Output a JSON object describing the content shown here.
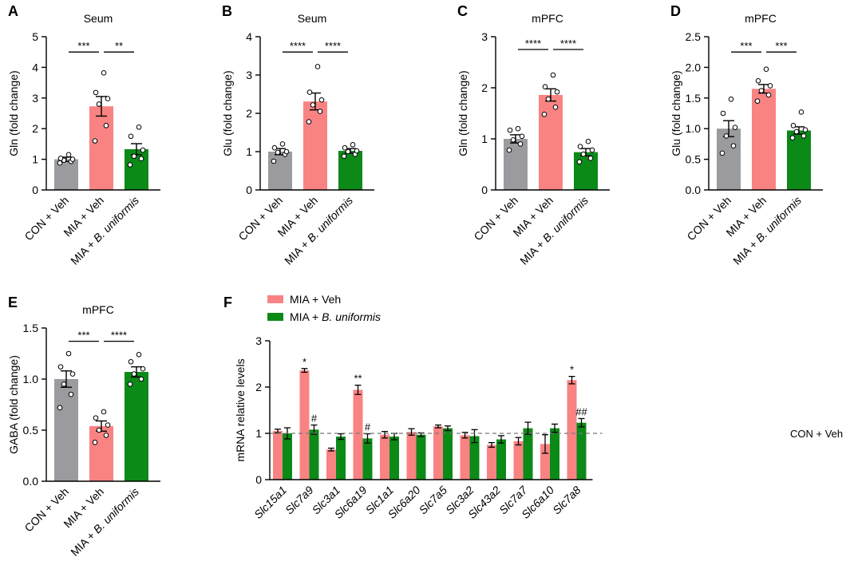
{
  "figure": {
    "letters": [
      "A",
      "B",
      "C",
      "D",
      "E",
      "F"
    ]
  },
  "colors": {
    "con_veh": "#9b9b9f",
    "mia_veh": "#f98383",
    "mia_bu": "#0b8a18",
    "axis": "#000000",
    "dot_fill": "#ffffff",
    "reference_line": "#777777"
  },
  "chart_data": [
    {
      "type": "bar",
      "panel": "A",
      "title": "Seum",
      "ylabel": "Gln (fold change)",
      "ylim": [
        0,
        5
      ],
      "yticks": [
        0,
        1,
        2,
        3,
        4,
        5
      ],
      "ytick_labels": [
        "0",
        "1",
        "2",
        "3",
        "4",
        "5"
      ],
      "categories": [
        {
          "text": "CON + Veh"
        },
        {
          "text": "MIA + Veh"
        },
        {
          "text": "MIA + ",
          "italic": "B. uniformis"
        }
      ],
      "values": [
        1.0,
        2.73,
        1.33
      ],
      "sem": [
        0.07,
        0.32,
        0.18
      ],
      "points": [
        [
          0.88,
          0.93,
          0.97,
          1.0,
          1.03,
          1.15
        ],
        [
          1.6,
          2.1,
          2.8,
          2.98,
          3.18,
          3.82
        ],
        [
          0.82,
          1.02,
          1.1,
          1.3,
          1.75,
          2.05
        ]
      ],
      "significance": [
        {
          "from": 0,
          "to": 1,
          "label": "***",
          "y": 4.5
        },
        {
          "from": 1,
          "to": 2,
          "label": "**",
          "y": 4.5
        }
      ]
    },
    {
      "type": "bar",
      "panel": "B",
      "title": "Seum",
      "ylabel": "Glu (fold change)",
      "ylim": [
        0,
        4
      ],
      "yticks": [
        0,
        1,
        2,
        3,
        4
      ],
      "ytick_labels": [
        "0",
        "1",
        "2",
        "3",
        "4"
      ],
      "categories": [
        {
          "text": "CON + Veh"
        },
        {
          "text": "MIA + Veh"
        },
        {
          "text": "MIA + ",
          "italic": "B. uniformis"
        }
      ],
      "values": [
        1.0,
        2.31,
        1.02
      ],
      "sem": [
        0.08,
        0.22,
        0.06
      ],
      "points": [
        [
          0.75,
          0.93,
          0.98,
          1.0,
          1.1,
          1.2
        ],
        [
          1.78,
          2.05,
          2.22,
          2.35,
          2.55,
          3.22
        ],
        [
          0.88,
          0.93,
          1.0,
          1.02,
          1.1,
          1.18
        ]
      ],
      "significance": [
        {
          "from": 0,
          "to": 1,
          "label": "****",
          "y": 3.6
        },
        {
          "from": 1,
          "to": 2,
          "label": "****",
          "y": 3.6
        }
      ]
    },
    {
      "type": "bar",
      "panel": "C",
      "title": "mPFC",
      "ylabel": "Gln (fold change)",
      "ylim": [
        0,
        3
      ],
      "yticks": [
        0,
        1,
        2,
        3
      ],
      "ytick_labels": [
        "0",
        "1",
        "2",
        "3"
      ],
      "categories": [
        {
          "text": "CON + Veh"
        },
        {
          "text": "MIA + Veh"
        },
        {
          "text": "MIA + ",
          "italic": "B. uniformis"
        }
      ],
      "values": [
        1.0,
        1.86,
        0.74
      ],
      "sem": [
        0.08,
        0.12,
        0.07
      ],
      "points": [
        [
          0.78,
          0.9,
          0.98,
          1.05,
          1.17,
          1.2
        ],
        [
          1.48,
          1.62,
          1.78,
          1.92,
          2.02,
          2.25
        ],
        [
          0.55,
          0.62,
          0.7,
          0.78,
          0.85,
          0.95
        ]
      ],
      "significance": [
        {
          "from": 0,
          "to": 1,
          "label": "****",
          "y": 2.75
        },
        {
          "from": 1,
          "to": 2,
          "label": "****",
          "y": 2.75
        }
      ]
    },
    {
      "type": "bar",
      "panel": "D",
      "title": "mPFC",
      "ylabel": "Glu (fold change)",
      "ylim": [
        0,
        2.5
      ],
      "yticks": [
        0,
        0.5,
        1.0,
        1.5,
        2.0,
        2.5
      ],
      "ytick_labels": [
        "0.0",
        "0.5",
        "1.0",
        "1.5",
        "2.0",
        "2.5"
      ],
      "categories": [
        {
          "text": "CON + Veh"
        },
        {
          "text": "MIA + Veh"
        },
        {
          "text": "MIA + ",
          "italic": "B. uniformis"
        }
      ],
      "values": [
        1.0,
        1.65,
        0.97
      ],
      "sem": [
        0.13,
        0.07,
        0.06
      ],
      "points": [
        [
          0.6,
          0.72,
          0.88,
          1.02,
          1.25,
          1.48
        ],
        [
          1.45,
          1.55,
          1.62,
          1.7,
          1.78,
          1.97
        ],
        [
          0.85,
          0.88,
          0.95,
          0.98,
          1.05,
          1.27
        ]
      ],
      "significance": [
        {
          "from": 0,
          "to": 1,
          "label": "***",
          "y": 2.25
        },
        {
          "from": 1,
          "to": 2,
          "label": "***",
          "y": 2.25
        }
      ]
    },
    {
      "type": "bar",
      "panel": "E",
      "title": "mPFC",
      "ylabel": "GABA (fold change)",
      "ylim": [
        0,
        1.5
      ],
      "yticks": [
        0,
        0.5,
        1.0,
        1.5
      ],
      "ytick_labels": [
        "0.0",
        "0.5",
        "1.0",
        "1.5"
      ],
      "categories": [
        {
          "text": "CON + Veh"
        },
        {
          "text": "MIA + Veh"
        },
        {
          "text": "MIA + ",
          "italic": "B. uniformis"
        }
      ],
      "values": [
        1.0,
        0.54,
        1.07
      ],
      "sem": [
        0.08,
        0.05,
        0.05
      ],
      "points": [
        [
          0.72,
          0.85,
          0.95,
          1.05,
          1.12,
          1.25
        ],
        [
          0.38,
          0.45,
          0.5,
          0.55,
          0.62,
          0.68
        ],
        [
          0.95,
          1.0,
          1.05,
          1.1,
          1.17,
          1.24
        ]
      ],
      "significance": [
        {
          "from": 0,
          "to": 1,
          "label": "***",
          "y": 1.37
        },
        {
          "from": 1,
          "to": 2,
          "label": "****",
          "y": 1.37
        }
      ]
    },
    {
      "type": "bar",
      "panel": "F",
      "title": "",
      "ylabel": "mRNA relative levels",
      "ylim": [
        0,
        3
      ],
      "yticks": [
        0,
        1,
        2,
        3
      ],
      "ytick_labels": [
        "0",
        "1",
        "2",
        "3"
      ],
      "reference": {
        "value": 1,
        "label": "CON + Veh"
      },
      "legend": [
        "MIA + Veh",
        "MIA + ",
        "B. uniformis"
      ],
      "categories": [
        "Slc15a1",
        "Slc7a9",
        "Slc3a1",
        "Slc6a19",
        "Slc1a1",
        "Slc6a20",
        "Slc7a5",
        "Slc3a2",
        "Slc43a2",
        "Slc7a7",
        "Slc6a10",
        "Slc7a8"
      ],
      "series": [
        {
          "name": "MIA + Veh",
          "values": [
            1.05,
            2.36,
            0.65,
            1.94,
            0.97,
            1.03,
            1.15,
            0.96,
            0.75,
            0.83,
            0.77,
            2.15
          ],
          "sem": [
            0.04,
            0.04,
            0.03,
            0.1,
            0.07,
            0.07,
            0.03,
            0.06,
            0.05,
            0.08,
            0.2,
            0.08
          ],
          "marks": [
            "",
            "*",
            "",
            "**",
            "",
            "",
            "",
            "",
            "",
            "",
            "",
            "*"
          ]
        },
        {
          "name": "MIA + B. uniformis",
          "values": [
            1.0,
            1.08,
            0.93,
            0.89,
            0.93,
            0.97,
            1.11,
            0.94,
            0.87,
            1.11,
            1.11,
            1.23
          ],
          "sem": [
            0.12,
            0.1,
            0.06,
            0.1,
            0.07,
            0.04,
            0.05,
            0.14,
            0.08,
            0.13,
            0.09,
            0.09
          ],
          "marks": [
            "",
            "#",
            "",
            "#",
            "",
            "",
            "",
            "",
            "",
            "",
            "",
            "##"
          ]
        }
      ]
    }
  ]
}
